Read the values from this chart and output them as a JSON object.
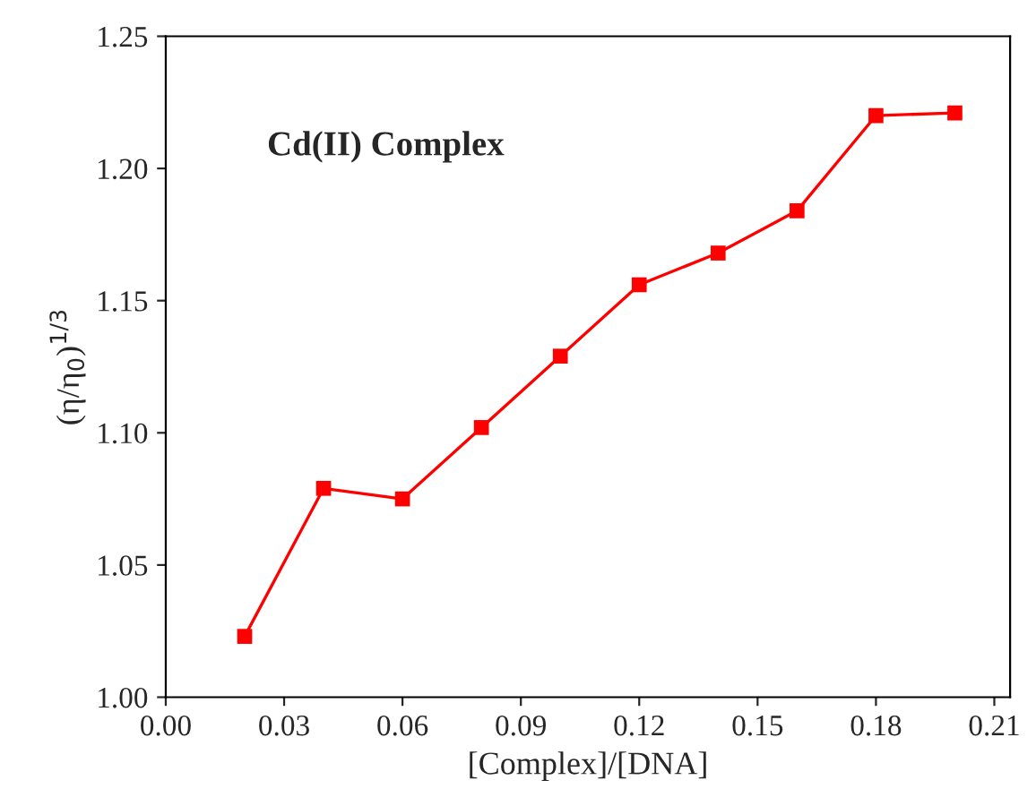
{
  "chart_data": {
    "type": "line",
    "xlabel": "[Complex]/[DNA]",
    "ylabel": "(η/η$_{0}$)$^{1/3}$",
    "annotations": [
      "Cd(II) Complex"
    ],
    "x": [
      0.02,
      0.04,
      0.06,
      0.08,
      0.1,
      0.12,
      0.14,
      0.16,
      0.18,
      0.2
    ],
    "series": [
      {
        "color": "#ff0000",
        "values": [
          1.023,
          1.079,
          1.075,
          1.102,
          1.129,
          1.156,
          1.168,
          1.184,
          1.22,
          1.221
        ]
      }
    ],
    "marker": "square",
    "line_style": "solid",
    "grid": false,
    "legend": false,
    "xlim": [
      0,
      0.214
    ],
    "ylim": [
      1.0,
      1.25
    ],
    "xticks": [
      {
        "value": 0,
        "label": "0.00"
      },
      {
        "value": 0.03,
        "label": "0.03"
      },
      {
        "value": 0.06,
        "label": "0.06"
      },
      {
        "value": 0.09,
        "label": "0.09"
      },
      {
        "value": 0.12,
        "label": "0.12"
      },
      {
        "value": 0.15,
        "label": "0.15"
      },
      {
        "value": 0.18,
        "label": "0.18"
      },
      {
        "value": 0.21,
        "label": "0.21"
      }
    ],
    "yticks": [
      {
        "value": 1.0,
        "label": "1.00"
      },
      {
        "value": 1.05,
        "label": "1.05"
      },
      {
        "value": 1.1,
        "label": "1.10"
      },
      {
        "value": 1.15,
        "label": "1.15"
      },
      {
        "value": 1.2,
        "label": "1.20"
      },
      {
        "value": 1.25,
        "label": "1.25"
      }
    ]
  }
}
